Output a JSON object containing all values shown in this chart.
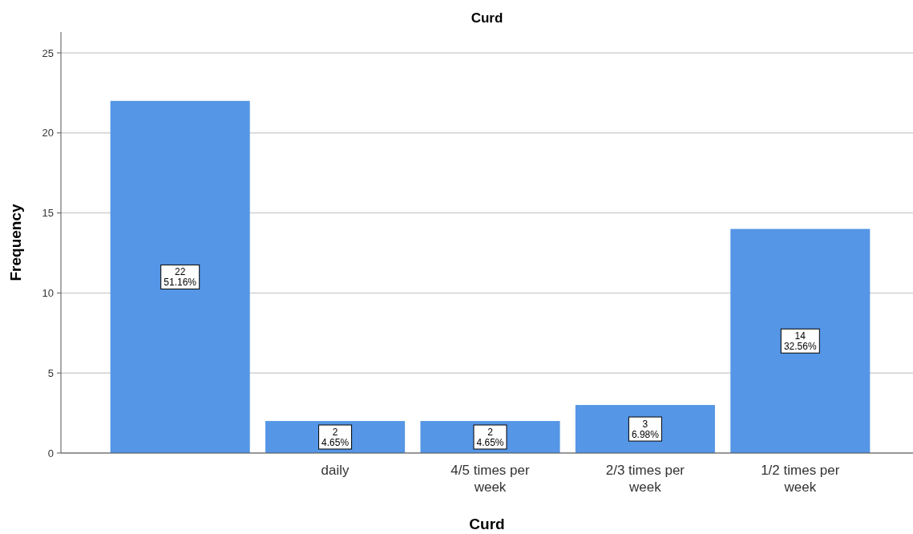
{
  "chart_data": {
    "type": "bar",
    "title": "Curd",
    "xlabel": "Curd",
    "ylabel": "Frequency",
    "categories": [
      null,
      "daily",
      "4/5 times per week",
      "2/3 times per week",
      "1/2 times per week"
    ],
    "values": [
      22,
      2,
      2,
      3,
      14
    ],
    "color": "#5596e6",
    "value_labels": [
      "22\n51.16%",
      "2\n4.65%",
      "2\n4.65%",
      "3\n6.98%",
      "14\n32.56%"
    ],
    "ylim": [
      0,
      26.3
    ],
    "yticks": [
      0,
      5,
      10,
      15,
      20,
      25
    ],
    "grid": "y"
  }
}
